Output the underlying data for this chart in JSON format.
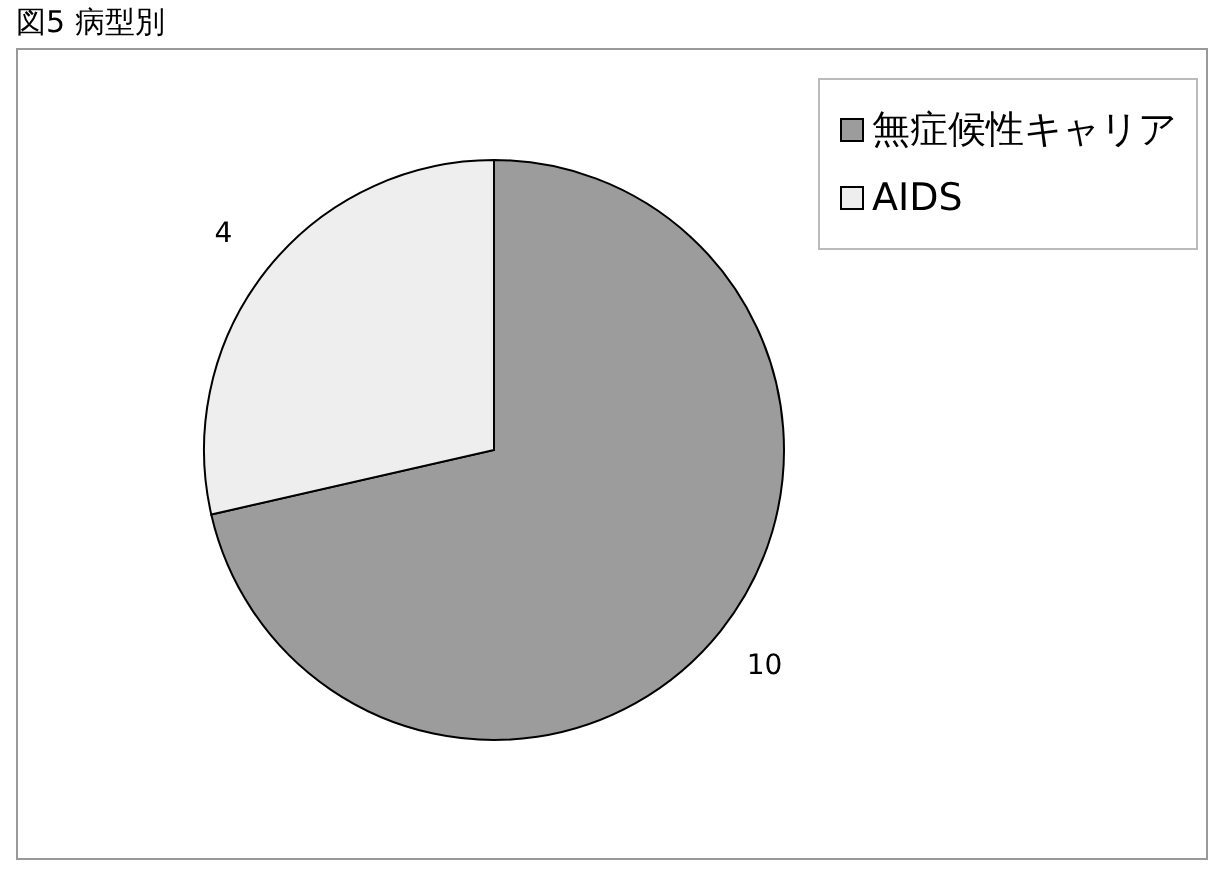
{
  "chart_data": {
    "type": "pie",
    "title": "図5 病型別",
    "categories": [
      "無症候性キャリア",
      "AIDS"
    ],
    "values": [
      10,
      4
    ],
    "colors": [
      "#9c9c9c",
      "#eeeeee"
    ],
    "data_labels": true,
    "legend": "top right"
  }
}
